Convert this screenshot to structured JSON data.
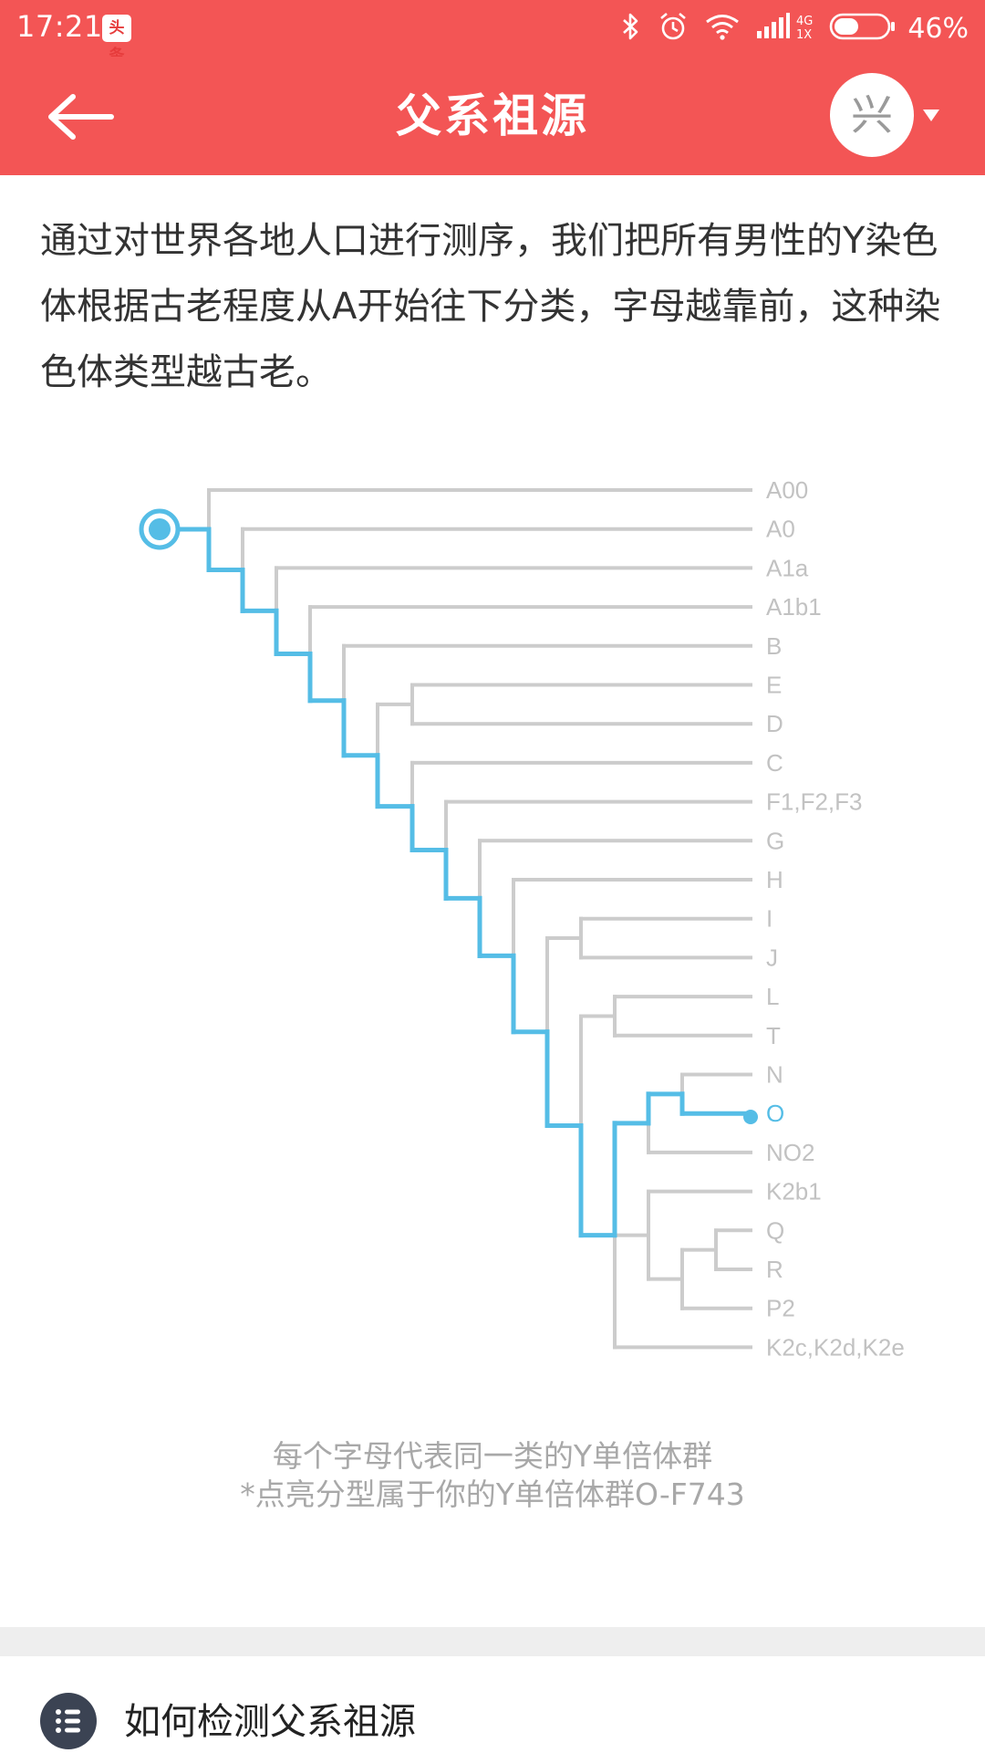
{
  "status_bar": {
    "time": "17:21",
    "app_badge": "头条",
    "network_top": "4G",
    "network_bottom": "1X",
    "battery_percent": "46%",
    "battery_level": 0.46,
    "icons": [
      "bluetooth-icon",
      "alarm-icon",
      "wifi-icon",
      "signal-icon",
      "battery-icon"
    ]
  },
  "header": {
    "title": "父系祖源",
    "avatar_text": "兴",
    "back_icon": "arrow-left-icon"
  },
  "intro_text": "通过对世界各地人口进行测序，我们把所有男性的Y染色体根据古老程度从A开始往下分类，字母越靠前，这种染色体类型越古老。",
  "tree": {
    "leaves": [
      "A00",
      "A0",
      "A1a",
      "A1b1",
      "B",
      "E",
      "D",
      "C",
      "F1,F2,F3",
      "G",
      "H",
      "I",
      "J",
      "L",
      "T",
      "N",
      "O",
      "NO2",
      "K2b1",
      "Q",
      "R",
      "P2",
      "K2c,K2d,K2e"
    ],
    "highlighted_leaf": "O",
    "colors": {
      "highlight": "#55bde6",
      "branch": "#cccccc",
      "label": "#c2c2c2"
    }
  },
  "footnote": {
    "line1": "每个字母代表同一类的Y单倍体群",
    "line2": "*点亮分型属于你的Y单倍体群O-F743"
  },
  "section": {
    "icon": "list-icon",
    "label": "如何检测父系祖源"
  }
}
